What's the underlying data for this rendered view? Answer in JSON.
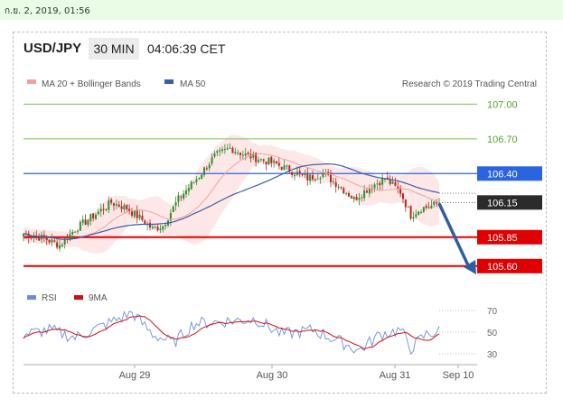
{
  "timestamp": "ก.ย. 2, 2019, 01:56",
  "header": {
    "symbol": "USD/JPY",
    "timeframe": "30 MIN",
    "time": "04:06:39 CET"
  },
  "legend": {
    "ma20": "MA 20 + Bollinger Bands",
    "ma50": "MA 50",
    "credit": "Research © 2019 Trading Central"
  },
  "colors": {
    "ma20": "#f4a0a0",
    "ma50": "#3a5fa8",
    "band": "#fde1e1",
    "up": "#2f8f2f",
    "down": "#c02020",
    "support": "#e00000",
    "resistance": "#2a64e0",
    "target": "#7cc04a",
    "arrow": "#2d5fa0",
    "rsi": "#6a8fd8",
    "ma9": "#d01010"
  },
  "chart_data": [
    {
      "type": "candlestick",
      "ylim": [
        105.45,
        107.05
      ],
      "x_tick_labels": [
        "Aug 29",
        "Aug 30",
        "Aug 31",
        "Sep 10"
      ],
      "levels": [
        {
          "label": "107.00",
          "value": 107.0,
          "kind": "target"
        },
        {
          "label": "106.70",
          "value": 106.7,
          "kind": "target"
        },
        {
          "label": "106.40",
          "value": 106.4,
          "kind": "resistance"
        },
        {
          "label": "106.15",
          "value": 106.15,
          "kind": "last"
        },
        {
          "label": "105.85",
          "value": 105.85,
          "kind": "support"
        },
        {
          "label": "105.60",
          "value": 105.6,
          "kind": "support"
        }
      ],
      "close_anchors": [
        [
          0,
          105.88
        ],
        [
          8,
          105.84
        ],
        [
          14,
          105.78
        ],
        [
          20,
          105.92
        ],
        [
          28,
          106.05
        ],
        [
          34,
          106.15
        ],
        [
          40,
          106.1
        ],
        [
          46,
          106.0
        ],
        [
          50,
          105.92
        ],
        [
          54,
          105.95
        ],
        [
          60,
          106.18
        ],
        [
          68,
          106.38
        ],
        [
          74,
          106.55
        ],
        [
          80,
          106.62
        ],
        [
          86,
          106.56
        ],
        [
          92,
          106.52
        ],
        [
          98,
          106.48
        ],
        [
          104,
          106.42
        ],
        [
          110,
          106.36
        ],
        [
          116,
          106.4
        ],
        [
          122,
          106.3
        ],
        [
          128,
          106.18
        ],
        [
          134,
          106.28
        ],
        [
          140,
          106.36
        ],
        [
          146,
          106.24
        ],
        [
          150,
          106.04
        ],
        [
          154,
          106.1
        ],
        [
          158,
          106.12
        ],
        [
          161,
          106.15
        ]
      ]
    },
    {
      "type": "line",
      "title": "RSI",
      "series": [
        {
          "name": "RSI"
        },
        {
          "name": "9MA"
        }
      ],
      "ylim": [
        25,
        75
      ],
      "y_ticks": [
        70,
        50,
        30
      ],
      "rsi_anchors": [
        [
          0,
          48
        ],
        [
          10,
          52
        ],
        [
          20,
          45
        ],
        [
          30,
          55
        ],
        [
          42,
          68
        ],
        [
          50,
          48
        ],
        [
          58,
          40
        ],
        [
          66,
          58
        ],
        [
          78,
          60
        ],
        [
          90,
          62
        ],
        [
          100,
          48
        ],
        [
          112,
          52
        ],
        [
          122,
          42
        ],
        [
          130,
          33
        ],
        [
          138,
          48
        ],
        [
          146,
          52
        ],
        [
          150,
          35
        ],
        [
          156,
          48
        ],
        [
          161,
          51
        ]
      ]
    }
  ]
}
